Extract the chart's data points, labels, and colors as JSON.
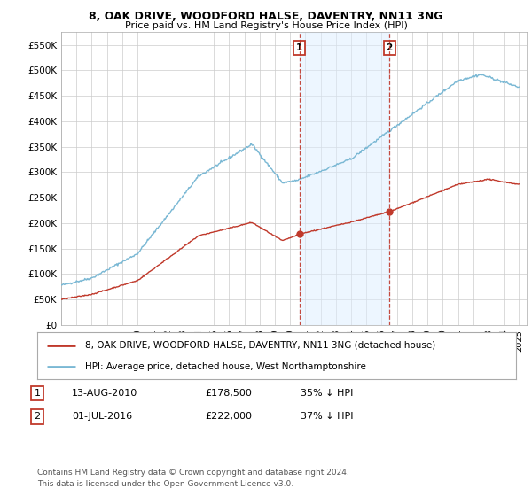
{
  "title": "8, OAK DRIVE, WOODFORD HALSE, DAVENTRY, NN11 3NG",
  "subtitle": "Price paid vs. HM Land Registry's House Price Index (HPI)",
  "ylabel_ticks": [
    0,
    50000,
    100000,
    150000,
    200000,
    250000,
    300000,
    350000,
    400000,
    450000,
    500000,
    550000
  ],
  "ylabel_labels": [
    "£0",
    "£50K",
    "£100K",
    "£150K",
    "£200K",
    "£250K",
    "£300K",
    "£350K",
    "£400K",
    "£450K",
    "£500K",
    "£550K"
  ],
  "ylim": [
    0,
    575000
  ],
  "hpi_color": "#7ab8d4",
  "price_color": "#c0392b",
  "marker1_date": 2010.62,
  "marker2_date": 2016.5,
  "marker1_price": 178500,
  "marker2_price": 222000,
  "transaction1": {
    "label": "1",
    "date": "13-AUG-2010",
    "price": "£178,500",
    "hpi": "35% ↓ HPI"
  },
  "transaction2": {
    "label": "2",
    "date": "01-JUL-2016",
    "price": "£222,000",
    "hpi": "37% ↓ HPI"
  },
  "legend_line1": "8, OAK DRIVE, WOODFORD HALSE, DAVENTRY, NN11 3NG (detached house)",
  "legend_line2": "HPI: Average price, detached house, West Northamptonshire",
  "footnote": "Contains HM Land Registry data © Crown copyright and database right 2024.\nThis data is licensed under the Open Government Licence v3.0.",
  "background_color": "#ffffff",
  "grid_color": "#cccccc",
  "shaded_region_color": "#ddeeff"
}
